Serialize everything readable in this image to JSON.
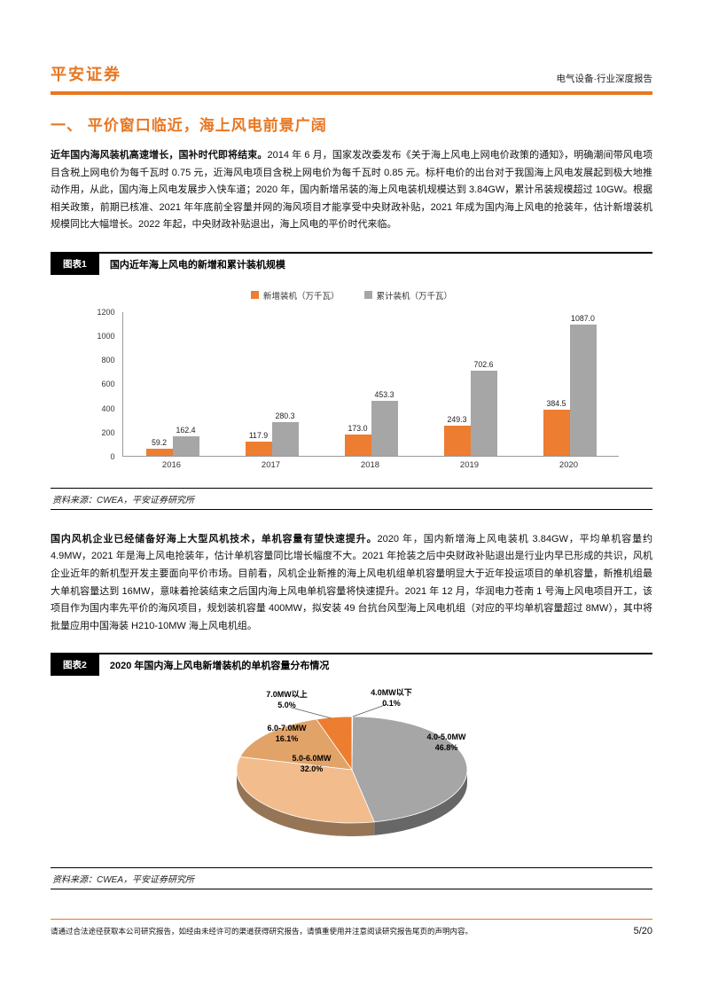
{
  "header": {
    "brand": "平安证券",
    "report_type": "电气设备·行业深度报告"
  },
  "section": {
    "title": "一、 平价窗口临近，海上风电前景广阔"
  },
  "paragraphs": [
    {
      "lead": "近年国内海风装机高速增长，国补时代即将结束。",
      "body": "2014 年 6 月，国家发改委发布《关于海上风电上网电价政策的通知》，明确潮间带风电项目含税上网电价为每千瓦时 0.75 元，近海风电项目含税上网电价为每千瓦时 0.85 元。标杆电价的出台对于我国海上风电发展起到极大地推动作用，从此，国内海上风电发展步入快车道；2020 年，国内新增吊装的海上风电装机规模达到 3.84GW，累计吊装规模超过 10GW。根据相关政策，前期已核准、2021 年年底前全容量并网的海风项目才能享受中央财政补贴，2021 年成为国内海上风电的抢装年，估计新增装机规模同比大幅增长。2022 年起，中央财政补贴退出，海上风电的平价时代来临。"
    },
    {
      "lead": "国内风机企业已经储备好海上大型风机技术，单机容量有望快速提升。",
      "body": "2020 年，国内新增海上风电装机 3.84GW，平均单机容量约 4.9MW，2021 年是海上风电抢装年，估计单机容量同比增长幅度不大。2021 年抢装之后中央财政补贴退出是行业内早已形成的共识，风机企业近年的新机型开发主要面向平价市场。目前看，风机企业新推的海上风电机组单机容量明显大于近年投运项目的单机容量，新推机组最大单机容量达到 16MW，意味着抢装结束之后国内海上风电单机容量将快速提升。2021 年 12 月，华润电力苍南 1 号海上风电项目开工，该项目作为国内率先平价的海风项目，规划装机容量 400MW，拟安装 49 台抗台风型海上风电机组（对应的平均单机容量超过 8MW），其中将批量应用中国海装 H210-10MW 海上风电机组。"
    }
  ],
  "chart_data": [
    {
      "type": "bar",
      "figure_label": "图表1",
      "title": "国内近年海上风电的新增和累计装机规模",
      "categories": [
        "2016",
        "2017",
        "2018",
        "2019",
        "2020"
      ],
      "series": [
        {
          "name": "新增装机（万千瓦）",
          "color": "#ED7D31",
          "values": [
            59.2,
            117.9,
            173.0,
            249.3,
            384.5
          ]
        },
        {
          "name": "累计装机（万千瓦）",
          "color": "#A6A6A6",
          "values": [
            162.4,
            280.3,
            453.3,
            702.6,
            1087.0
          ]
        }
      ],
      "ylim": [
        0,
        1200
      ],
      "ytick_step": 200,
      "grid": false,
      "legend_position": "top-center",
      "source": "资料来源：CWEA，平安证券研究所"
    },
    {
      "type": "pie",
      "figure_label": "图表2",
      "title": "2020 年国内海上风电新增装机的单机容量分布情况",
      "labels": [
        "4.0MW以下",
        "4.0-5.0MW",
        "5.0-6.0MW",
        "6.0-7.0MW",
        "7.0MW以上"
      ],
      "values": [
        0.1,
        46.8,
        32.0,
        16.1,
        5.0
      ],
      "percent_labels": [
        "0.1%",
        "46.8%",
        "32.0%",
        "16.1%",
        "5.0%"
      ],
      "colors": [
        "#C9C9C9",
        "#A6A6A6",
        "#F2BC8D",
        "#E2A368",
        "#ED7D31"
      ],
      "style": "3d",
      "source": "资料来源：CWEA，平安证券研究所"
    }
  ],
  "footer": {
    "disclaimer": "请通过合法途径获取本公司研究报告，如经由未经许可的渠道获得研究报告，请慎重使用并注意阅读研究报告尾页的声明内容。",
    "page_number": "5/20"
  },
  "colors": {
    "brand_orange": "#E87722",
    "bar_orange": "#ED7D31",
    "bar_gray": "#A6A6A6"
  }
}
